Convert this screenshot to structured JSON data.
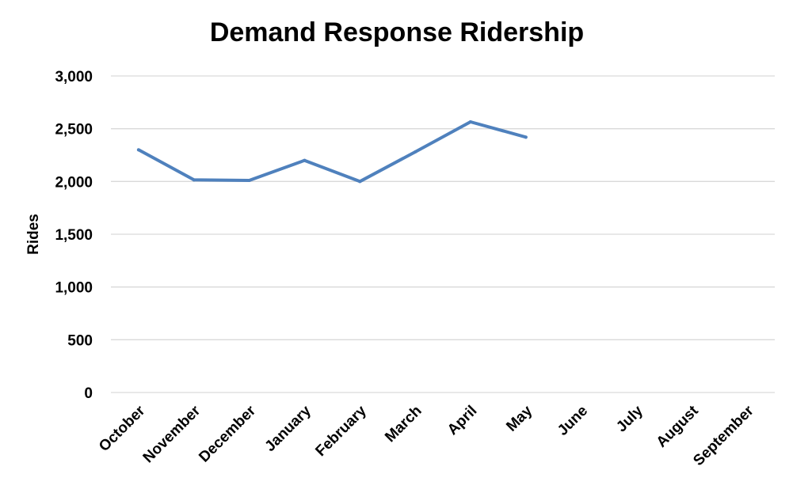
{
  "chart_data": {
    "type": "line",
    "title": "Demand Response Ridership",
    "xlabel": "",
    "ylabel": "Rides",
    "categories": [
      "October",
      "November",
      "December",
      "January",
      "February",
      "March",
      "April",
      "May",
      "June",
      "July",
      "August",
      "September"
    ],
    "series": [
      {
        "values": [
          2300,
          2015,
          2010,
          2200,
          2000,
          2280,
          2565,
          2420,
          null,
          null,
          null,
          null
        ],
        "color": "#4f81bd"
      }
    ],
    "ylim": [
      0,
      3000
    ],
    "yticks": [
      0,
      500,
      1000,
      1500,
      2000,
      2500,
      3000
    ],
    "ytick_labels": [
      "0",
      "500",
      "1,000",
      "1,500",
      "2,000",
      "2,500",
      "3,000"
    ],
    "grid": true,
    "grid_color": "#d9d9d9",
    "legend": "none"
  }
}
